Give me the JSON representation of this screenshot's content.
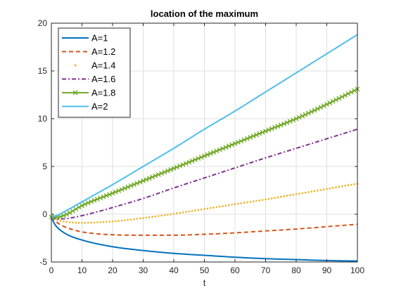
{
  "chart_data": {
    "type": "line",
    "title": "location of the maximum",
    "xlabel": "t",
    "ylabel": "",
    "xlim": [
      0,
      100
    ],
    "ylim": [
      -5,
      20
    ],
    "xticks": [
      "0",
      "10",
      "20",
      "30",
      "40",
      "50",
      "60",
      "70",
      "80",
      "90",
      "100"
    ],
    "yticks": [
      "-5",
      "0",
      "5",
      "10",
      "15",
      "20"
    ],
    "grid": true,
    "legend_position": "top-left",
    "series": [
      {
        "name": "A=1",
        "color": "#0072BD",
        "style": "solid",
        "marker": "none",
        "x": [
          0,
          1,
          2,
          5,
          10,
          20,
          30,
          40,
          50,
          60,
          70,
          80,
          90,
          100
        ],
        "y": [
          -0.3,
          -1.0,
          -1.4,
          -2.1,
          -2.7,
          -3.4,
          -3.8,
          -4.1,
          -4.3,
          -4.5,
          -4.65,
          -4.75,
          -4.85,
          -4.9
        ]
      },
      {
        "name": "A=1.2",
        "color": "#D95319",
        "style": "dashed",
        "marker": "none",
        "x": [
          0,
          2,
          5,
          10,
          15,
          20,
          30,
          40,
          50,
          60,
          70,
          80,
          90,
          100
        ],
        "y": [
          -0.3,
          -0.9,
          -1.4,
          -1.85,
          -2.05,
          -2.15,
          -2.2,
          -2.2,
          -2.1,
          -1.95,
          -1.75,
          -1.55,
          -1.3,
          -1.05
        ]
      },
      {
        "name": "A=1.4",
        "color": "#EDB120",
        "style": "dotted",
        "marker": "point",
        "x": [
          0,
          2,
          5,
          10,
          15,
          20,
          30,
          40,
          50,
          60,
          70,
          80,
          90,
          100
        ],
        "y": [
          -0.3,
          -0.6,
          -0.8,
          -0.9,
          -0.85,
          -0.75,
          -0.4,
          0.05,
          0.55,
          1.05,
          1.55,
          2.1,
          2.65,
          3.2
        ]
      },
      {
        "name": "A=1.6",
        "color": "#7E2F8E",
        "style": "dashdot",
        "marker": "none",
        "x": [
          0,
          2,
          5,
          10,
          15,
          20,
          30,
          40,
          50,
          60,
          70,
          80,
          90,
          100
        ],
        "y": [
          -0.3,
          -0.5,
          -0.45,
          -0.15,
          0.25,
          0.7,
          1.65,
          2.75,
          3.8,
          4.85,
          5.9,
          6.9,
          7.9,
          8.9
        ]
      },
      {
        "name": "A=1.8",
        "color": "#77AC30",
        "style": "solid",
        "marker": "x",
        "x": [
          0,
          2,
          5,
          10,
          20,
          30,
          40,
          50,
          60,
          70,
          80,
          90,
          100
        ],
        "y": [
          -0.3,
          -0.3,
          0.0,
          0.9,
          2.2,
          3.5,
          4.8,
          6.1,
          7.4,
          8.7,
          10.0,
          11.5,
          13.1
        ]
      },
      {
        "name": "A=2",
        "color": "#4DBEEE",
        "style": "solid",
        "marker": "none",
        "x": [
          0,
          2,
          5,
          10,
          20,
          30,
          40,
          50,
          60,
          70,
          80,
          90,
          100
        ],
        "y": [
          -0.3,
          -0.1,
          0.4,
          1.3,
          3.1,
          5.0,
          6.9,
          8.9,
          10.8,
          12.8,
          14.8,
          16.8,
          18.8
        ]
      }
    ]
  }
}
